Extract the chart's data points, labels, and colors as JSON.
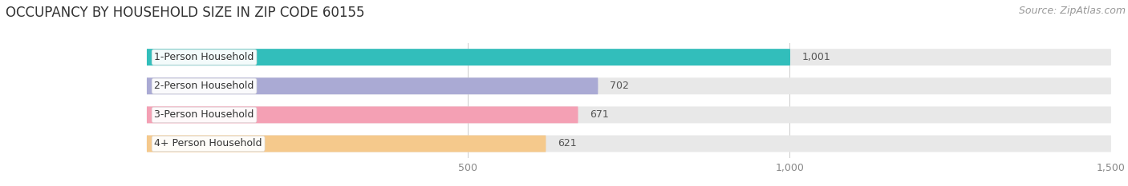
{
  "title": "OCCUPANCY BY HOUSEHOLD SIZE IN ZIP CODE 60155",
  "source": "Source: ZipAtlas.com",
  "categories": [
    "1-Person Household",
    "2-Person Household",
    "3-Person Household",
    "4+ Person Household"
  ],
  "values": [
    1001,
    702,
    671,
    621
  ],
  "bar_colors": [
    "#32bebb",
    "#aaaad4",
    "#f4a0b4",
    "#f5c98c"
  ],
  "xlim": [
    0,
    1500
  ],
  "xmin": 0,
  "xticks": [
    500,
    1000,
    1500
  ],
  "background_color": "#ffffff",
  "bar_bg_color": "#e8e8e8",
  "title_fontsize": 12,
  "source_fontsize": 9,
  "label_fontsize": 9,
  "value_fontsize": 9,
  "tick_fontsize": 9
}
